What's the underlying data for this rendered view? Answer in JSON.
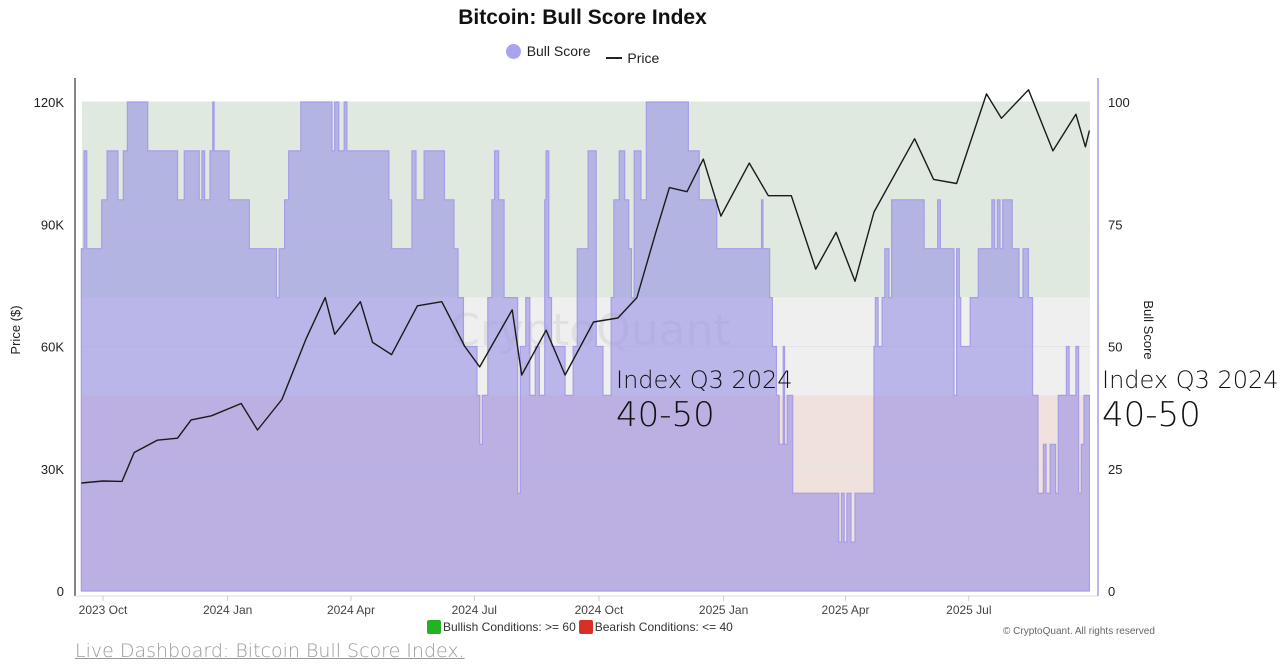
{
  "chart_data": {
    "type": "area",
    "title": "Bitcoin: Bull Score Index",
    "legend": [
      "Bull Score",
      "Price"
    ],
    "legend_placement": "top",
    "y_left": {
      "label": "Price ($)",
      "range": [
        0,
        120000
      ],
      "ticks": [
        "0",
        "30K",
        "60K",
        "90K",
        "120K"
      ],
      "tick_values": [
        0,
        30000,
        60000,
        90000,
        120000
      ]
    },
    "y_right": {
      "label": "Bull Score",
      "range": [
        0,
        100
      ],
      "ticks": [
        "0",
        "25",
        "50",
        "75",
        "100"
      ],
      "tick_values": [
        0,
        25,
        50,
        75,
        100
      ]
    },
    "x_axis": {
      "range": [
        "2023-09-15",
        "2025-09-28"
      ],
      "ticks": [
        "2023 Oct",
        "2024 Jan",
        "2024 Apr",
        "2024 Jul",
        "2024 Oct",
        "2025 Jan",
        "2025 Apr",
        "2025 Jul"
      ],
      "tick_dates": [
        "2023-10-01",
        "2024-01-01",
        "2024-04-01",
        "2024-07-01",
        "2024-10-01",
        "2025-01-01",
        "2025-04-01",
        "2025-07-01"
      ]
    },
    "bands": [
      {
        "label": "Bullish Conditions: >= 60",
        "from": 60,
        "to": 100,
        "color": "#dfe9e0",
        "legend_color": "#22b322"
      },
      {
        "from": 40,
        "to": 60,
        "color": "#efefef"
      },
      {
        "label": "Bearish Conditions: <= 40",
        "from": 0,
        "to": 40,
        "color": "#f1e1dc",
        "legend_color": "#d93025"
      }
    ],
    "series": [
      {
        "name": "Bull Score",
        "type": "step-area",
        "axis": "right",
        "color": "#a59de8",
        "points": [
          [
            "2023-09-15",
            70
          ],
          [
            "2023-09-17",
            90
          ],
          [
            "2023-09-19",
            70
          ],
          [
            "2023-09-30",
            80
          ],
          [
            "2023-10-04",
            90
          ],
          [
            "2023-10-12",
            80
          ],
          [
            "2023-10-16",
            90
          ],
          [
            "2023-10-19",
            100
          ],
          [
            "2023-11-03",
            90
          ],
          [
            "2023-11-25",
            80
          ],
          [
            "2023-11-30",
            90
          ],
          [
            "2023-12-11",
            80
          ],
          [
            "2023-12-13",
            90
          ],
          [
            "2023-12-15",
            80
          ],
          [
            "2023-12-19",
            90
          ],
          [
            "2023-12-21",
            100
          ],
          [
            "2023-12-22",
            90
          ],
          [
            "2024-01-02",
            80
          ],
          [
            "2024-01-17",
            70
          ],
          [
            "2024-02-06",
            60
          ],
          [
            "2024-02-08",
            70
          ],
          [
            "2024-02-12",
            80
          ],
          [
            "2024-02-15",
            90
          ],
          [
            "2024-02-24",
            100
          ],
          [
            "2024-03-18",
            90
          ],
          [
            "2024-03-20",
            100
          ],
          [
            "2024-03-23",
            90
          ],
          [
            "2024-03-27",
            100
          ],
          [
            "2024-03-29",
            90
          ],
          [
            "2024-04-29",
            80
          ],
          [
            "2024-05-01",
            70
          ],
          [
            "2024-05-16",
            90
          ],
          [
            "2024-05-19",
            80
          ],
          [
            "2024-05-25",
            90
          ],
          [
            "2024-06-09",
            80
          ],
          [
            "2024-06-16",
            70
          ],
          [
            "2024-06-19",
            60
          ],
          [
            "2024-06-23",
            50
          ],
          [
            "2024-07-03",
            40
          ],
          [
            "2024-07-05",
            30
          ],
          [
            "2024-07-07",
            40
          ],
          [
            "2024-07-11",
            60
          ],
          [
            "2024-07-14",
            80
          ],
          [
            "2024-07-16",
            90
          ],
          [
            "2024-07-19",
            80
          ],
          [
            "2024-07-23",
            60
          ],
          [
            "2024-08-02",
            20
          ],
          [
            "2024-08-04",
            50
          ],
          [
            "2024-08-08",
            60
          ],
          [
            "2024-08-11",
            40
          ],
          [
            "2024-08-15",
            50
          ],
          [
            "2024-08-18",
            40
          ],
          [
            "2024-08-22",
            80
          ],
          [
            "2024-08-23",
            90
          ],
          [
            "2024-08-25",
            60
          ],
          [
            "2024-08-27",
            50
          ],
          [
            "2024-09-06",
            40
          ],
          [
            "2024-09-12",
            50
          ],
          [
            "2024-09-15",
            70
          ],
          [
            "2024-09-23",
            90
          ],
          [
            "2024-09-29",
            50
          ],
          [
            "2024-10-04",
            40
          ],
          [
            "2024-10-10",
            60
          ],
          [
            "2024-10-12",
            80
          ],
          [
            "2024-10-16",
            90
          ],
          [
            "2024-10-20",
            80
          ],
          [
            "2024-10-23",
            70
          ],
          [
            "2024-10-25",
            60
          ],
          [
            "2024-10-27",
            90
          ],
          [
            "2024-11-01",
            80
          ],
          [
            "2024-11-05",
            100
          ],
          [
            "2024-12-06",
            90
          ],
          [
            "2024-12-14",
            80
          ],
          [
            "2024-12-27",
            70
          ],
          [
            "2025-01-29",
            80
          ],
          [
            "2025-01-30",
            70
          ],
          [
            "2025-02-04",
            60
          ],
          [
            "2025-02-06",
            50
          ],
          [
            "2025-02-09",
            40
          ],
          [
            "2025-02-11",
            30
          ],
          [
            "2025-02-14",
            50
          ],
          [
            "2025-02-15",
            30
          ],
          [
            "2025-02-17",
            40
          ],
          [
            "2025-02-21",
            20
          ],
          [
            "2025-03-27",
            10
          ],
          [
            "2025-03-29",
            20
          ],
          [
            "2025-03-31",
            10
          ],
          [
            "2025-04-02",
            20
          ],
          [
            "2025-04-05",
            10
          ],
          [
            "2025-04-08",
            20
          ],
          [
            "2025-04-22",
            50
          ],
          [
            "2025-04-23",
            60
          ],
          [
            "2025-04-25",
            50
          ],
          [
            "2025-04-28",
            60
          ],
          [
            "2025-04-30",
            70
          ],
          [
            "2025-05-03",
            60
          ],
          [
            "2025-05-05",
            80
          ],
          [
            "2025-05-29",
            70
          ],
          [
            "2025-06-08",
            80
          ],
          [
            "2025-06-10",
            70
          ],
          [
            "2025-06-20",
            40
          ],
          [
            "2025-06-22",
            70
          ],
          [
            "2025-06-24",
            60
          ],
          [
            "2025-06-25",
            50
          ],
          [
            "2025-07-02",
            60
          ],
          [
            "2025-07-08",
            70
          ],
          [
            "2025-07-18",
            80
          ],
          [
            "2025-07-20",
            70
          ],
          [
            "2025-07-22",
            80
          ],
          [
            "2025-07-24",
            70
          ],
          [
            "2025-07-26",
            80
          ],
          [
            "2025-08-02",
            70
          ],
          [
            "2025-08-07",
            60
          ],
          [
            "2025-08-10",
            70
          ],
          [
            "2025-08-14",
            60
          ],
          [
            "2025-08-17",
            40
          ],
          [
            "2025-08-21",
            20
          ],
          [
            "2025-08-25",
            30
          ],
          [
            "2025-08-27",
            20
          ],
          [
            "2025-08-30",
            30
          ],
          [
            "2025-09-03",
            20
          ],
          [
            "2025-09-05",
            40
          ],
          [
            "2025-09-11",
            50
          ],
          [
            "2025-09-13",
            40
          ],
          [
            "2025-09-18",
            50
          ],
          [
            "2025-09-20",
            20
          ],
          [
            "2025-09-22",
            30
          ],
          [
            "2025-09-24",
            40
          ],
          [
            "2025-09-28",
            40
          ]
        ]
      },
      {
        "name": "Price",
        "type": "line",
        "axis": "left",
        "color": "#1a1a1a",
        "points": [
          [
            "2023-09-15",
            26500
          ],
          [
            "2023-10-01",
            27000
          ],
          [
            "2023-10-15",
            26900
          ],
          [
            "2023-10-24",
            34000
          ],
          [
            "2023-11-10",
            37000
          ],
          [
            "2023-11-25",
            37500
          ],
          [
            "2023-12-05",
            42000
          ],
          [
            "2023-12-20",
            43000
          ],
          [
            "2024-01-11",
            46000
          ],
          [
            "2024-01-23",
            39500
          ],
          [
            "2024-02-10",
            47000
          ],
          [
            "2024-02-28",
            62000
          ],
          [
            "2024-03-13",
            72000
          ],
          [
            "2024-03-20",
            63000
          ],
          [
            "2024-04-08",
            71000
          ],
          [
            "2024-04-17",
            61000
          ],
          [
            "2024-05-01",
            58000
          ],
          [
            "2024-05-20",
            70000
          ],
          [
            "2024-06-07",
            71000
          ],
          [
            "2024-06-24",
            60000
          ],
          [
            "2024-07-05",
            55000
          ],
          [
            "2024-07-29",
            69000
          ],
          [
            "2024-08-05",
            53000
          ],
          [
            "2024-08-23",
            64000
          ],
          [
            "2024-09-06",
            53000
          ],
          [
            "2024-09-27",
            66000
          ],
          [
            "2024-10-15",
            67000
          ],
          [
            "2024-10-29",
            72000
          ],
          [
            "2024-11-12",
            88000
          ],
          [
            "2024-11-22",
            99000
          ],
          [
            "2024-12-05",
            98000
          ],
          [
            "2024-12-17",
            106000
          ],
          [
            "2024-12-30",
            92000
          ],
          [
            "2025-01-20",
            105000
          ],
          [
            "2025-02-03",
            97000
          ],
          [
            "2025-02-20",
            97000
          ],
          [
            "2025-03-10",
            79000
          ],
          [
            "2025-03-25",
            88000
          ],
          [
            "2025-04-08",
            76000
          ],
          [
            "2025-04-22",
            93000
          ],
          [
            "2025-05-22",
            111000
          ],
          [
            "2025-06-05",
            101000
          ],
          [
            "2025-06-22",
            100000
          ],
          [
            "2025-07-14",
            122000
          ],
          [
            "2025-07-25",
            116000
          ],
          [
            "2025-08-14",
            123000
          ],
          [
            "2025-09-01",
            108000
          ],
          [
            "2025-09-18",
            117000
          ],
          [
            "2025-09-25",
            109000
          ],
          [
            "2025-09-28",
            113000
          ]
        ]
      }
    ],
    "annotations": [
      {
        "line1": "Index Q3 2024",
        "line2": "40-50"
      },
      {
        "line1": "Index Q3 2024",
        "line2": "40-50"
      }
    ],
    "grid": true
  },
  "watermark": "CryptoQuant",
  "bottom_legend": {
    "bullish": "Bullish Conditions: >= 60",
    "bearish": "Bearish Conditions: <= 40"
  },
  "copyright": "© CryptoQuant. All rights reserved",
  "link": "Live Dashboard: Bitcoin Bull Score Index."
}
